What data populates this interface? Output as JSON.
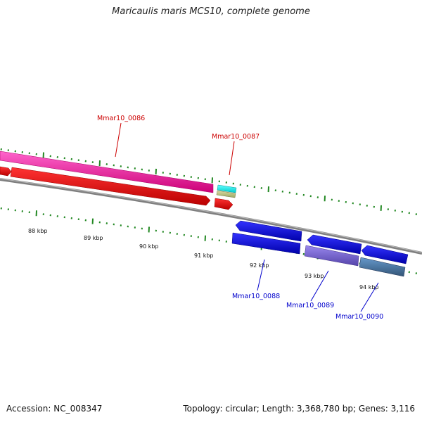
{
  "title": "Maricaulis maris MCS10, complete genome",
  "footer": {
    "accession": "Accession: NC_008347",
    "summary": "Topology: circular; Length: 3,368,780 bp; Genes: 3,116"
  },
  "colors": {
    "forward_label": "#cc0000",
    "reverse_label": "#0000cc",
    "tick": "#228822",
    "backbone": "#808080"
  },
  "scale_labels": [
    {
      "kbp": 88,
      "text": "88 kbp"
    },
    {
      "kbp": 89,
      "text": "89 kbp"
    },
    {
      "kbp": 90,
      "text": "90 kbp"
    },
    {
      "kbp": 91,
      "text": "91 kbp"
    },
    {
      "kbp": 92,
      "text": "92 kbp"
    },
    {
      "kbp": 93,
      "text": "93 kbp"
    },
    {
      "kbp": 94,
      "text": "94 kbp"
    }
  ],
  "gene_labels": [
    {
      "name": "Mmar10_0086",
      "strand": "forward"
    },
    {
      "name": "Mmar10_0087",
      "strand": "forward"
    },
    {
      "name": "Mmar10_0088",
      "strand": "reverse"
    },
    {
      "name": "Mmar10_0089",
      "strand": "reverse"
    },
    {
      "name": "Mmar10_0090",
      "strand": "reverse"
    }
  ]
}
